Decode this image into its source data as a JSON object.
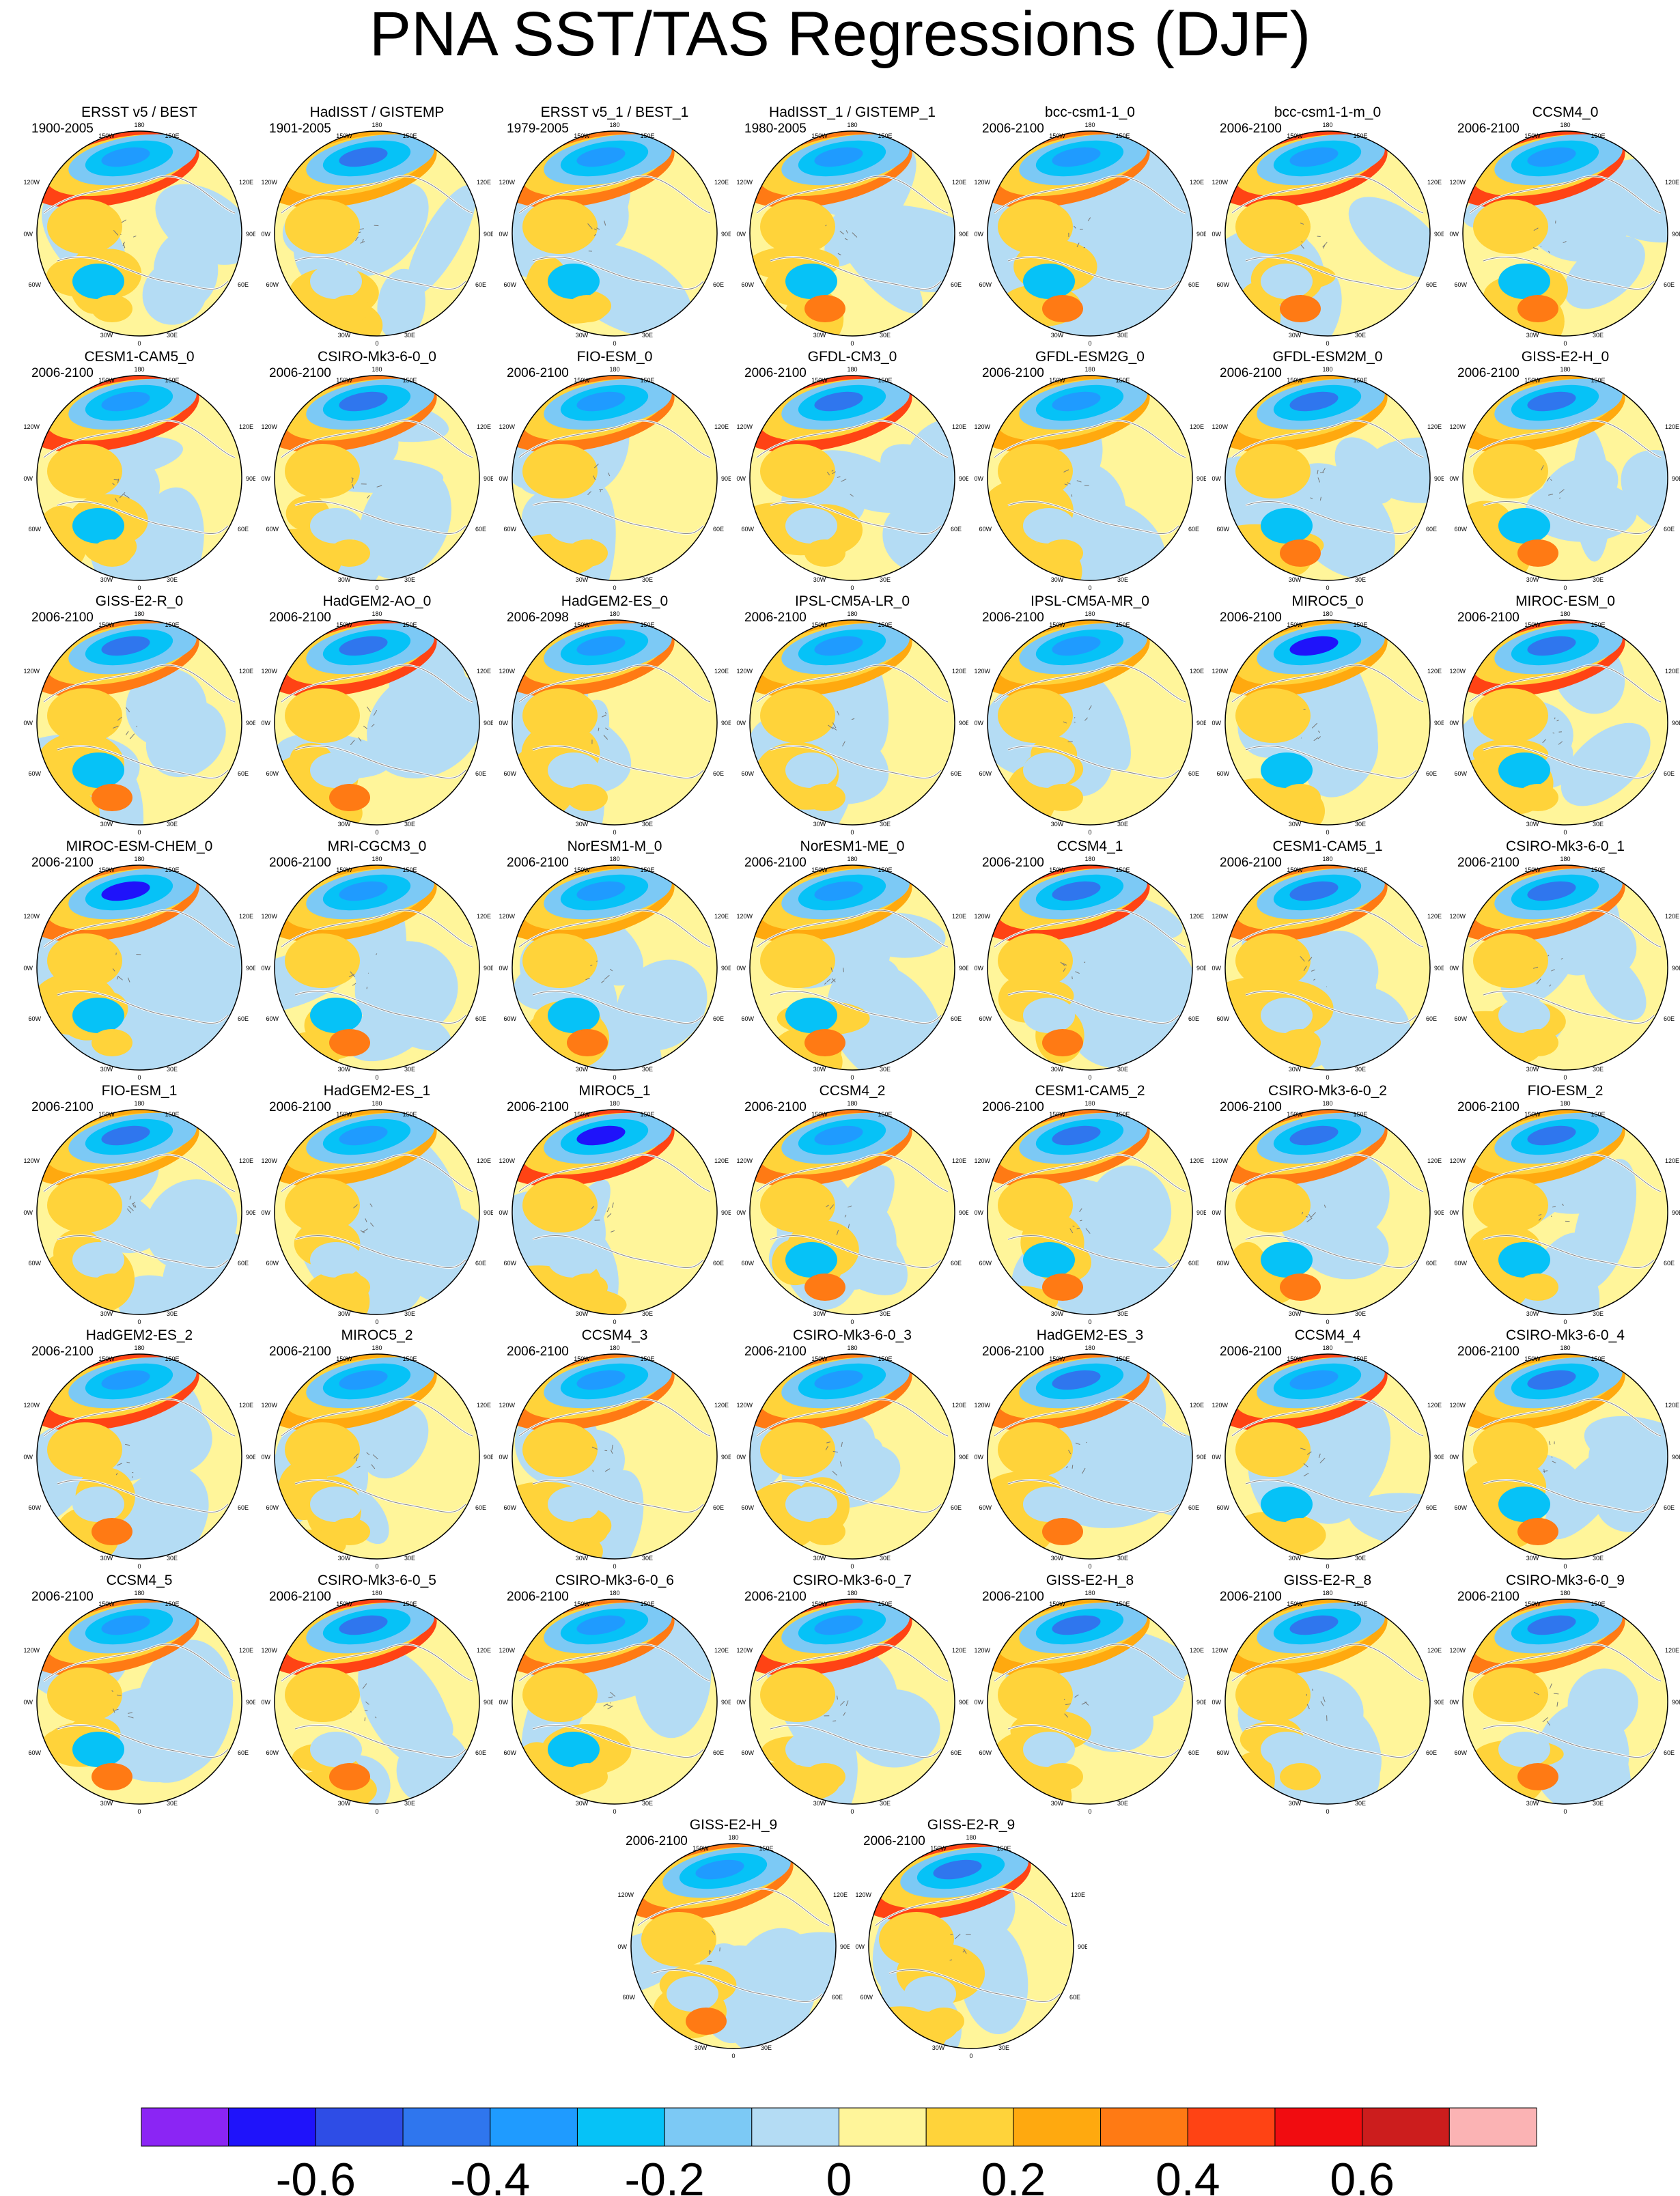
{
  "title": "PNA SST/TAS Regressions (DJF)",
  "lon_labels": [
    "180",
    "150W",
    "150E",
    "120W",
    "120E",
    "90W",
    "90E",
    "60W",
    "60E",
    "30W",
    "30E",
    "0"
  ],
  "colorbar": {
    "colors": [
      "#8b25f4",
      "#1f13fa",
      "#2e4de6",
      "#2f76ee",
      "#1f9bff",
      "#06c2f7",
      "#7cc9f5",
      "#b4dcf4",
      "#fff59a",
      "#ffd33a",
      "#ffa90f",
      "#ff7a14",
      "#ff4314",
      "#f10c10",
      "#cc1d1d",
      "#fbb3b4"
    ],
    "tick_labels": [
      "-0.6",
      "-0.4",
      "-0.2",
      "0",
      "0.2",
      "0.4",
      "0.6"
    ],
    "tick_boundary_index": [
      2,
      4,
      6,
      8,
      10,
      12,
      14
    ]
  },
  "panels": [
    {
      "name": "ERSST v5 / BEST",
      "period": "1900-2005"
    },
    {
      "name": "HadISST / GISTEMP",
      "period": "1901-2005"
    },
    {
      "name": "ERSST v5_1 / BEST_1",
      "period": "1979-2005"
    },
    {
      "name": "HadISST_1 / GISTEMP_1",
      "period": "1980-2005"
    },
    {
      "name": "bcc-csm1-1_0",
      "period": "2006-2100"
    },
    {
      "name": "bcc-csm1-1-m_0",
      "period": "2006-2100"
    },
    {
      "name": "CCSM4_0",
      "period": "2006-2100"
    },
    {
      "name": "CESM1-CAM5_0",
      "period": "2006-2100"
    },
    {
      "name": "CSIRO-Mk3-6-0_0",
      "period": "2006-2100"
    },
    {
      "name": "FIO-ESM_0",
      "period": "2006-2100"
    },
    {
      "name": "GFDL-CM3_0",
      "period": "2006-2100"
    },
    {
      "name": "GFDL-ESM2G_0",
      "period": "2006-2100"
    },
    {
      "name": "GFDL-ESM2M_0",
      "period": "2006-2100"
    },
    {
      "name": "GISS-E2-H_0",
      "period": "2006-2100"
    },
    {
      "name": "GISS-E2-R_0",
      "period": "2006-2100"
    },
    {
      "name": "HadGEM2-AO_0",
      "period": "2006-2100"
    },
    {
      "name": "HadGEM2-ES_0",
      "period": "2006-2098"
    },
    {
      "name": "IPSL-CM5A-LR_0",
      "period": "2006-2100"
    },
    {
      "name": "IPSL-CM5A-MR_0",
      "period": "2006-2100"
    },
    {
      "name": "MIROC5_0",
      "period": "2006-2100"
    },
    {
      "name": "MIROC-ESM_0",
      "period": "2006-2100"
    },
    {
      "name": "MIROC-ESM-CHEM_0",
      "period": "2006-2100"
    },
    {
      "name": "MRI-CGCM3_0",
      "period": "2006-2100"
    },
    {
      "name": "NorESM1-M_0",
      "period": "2006-2100"
    },
    {
      "name": "NorESM1-ME_0",
      "period": "2006-2100"
    },
    {
      "name": "CCSM4_1",
      "period": "2006-2100"
    },
    {
      "name": "CESM1-CAM5_1",
      "period": "2006-2100"
    },
    {
      "name": "CSIRO-Mk3-6-0_1",
      "period": "2006-2100"
    },
    {
      "name": "FIO-ESM_1",
      "period": "2006-2100"
    },
    {
      "name": "HadGEM2-ES_1",
      "period": "2006-2100"
    },
    {
      "name": "MIROC5_1",
      "period": "2006-2100"
    },
    {
      "name": "CCSM4_2",
      "period": "2006-2100"
    },
    {
      "name": "CESM1-CAM5_2",
      "period": "2006-2100"
    },
    {
      "name": "CSIRO-Mk3-6-0_2",
      "period": "2006-2100"
    },
    {
      "name": "FIO-ESM_2",
      "period": "2006-2100"
    },
    {
      "name": "HadGEM2-ES_2",
      "period": "2006-2100"
    },
    {
      "name": "MIROC5_2",
      "period": "2006-2100"
    },
    {
      "name": "CCSM4_3",
      "period": "2006-2100"
    },
    {
      "name": "CSIRO-Mk3-6-0_3",
      "period": "2006-2100"
    },
    {
      "name": "HadGEM2-ES_3",
      "period": "2006-2100"
    },
    {
      "name": "CCSM4_4",
      "period": "2006-2100"
    },
    {
      "name": "CSIRO-Mk3-6-0_4",
      "period": "2006-2100"
    },
    {
      "name": "CCSM4_5",
      "period": "2006-2100"
    },
    {
      "name": "CSIRO-Mk3-6-0_5",
      "period": "2006-2100"
    },
    {
      "name": "CSIRO-Mk3-6-0_6",
      "period": "2006-2100"
    },
    {
      "name": "CSIRO-Mk3-6-0_7",
      "period": "2006-2100"
    },
    {
      "name": "GISS-E2-H_8",
      "period": "2006-2100"
    },
    {
      "name": "GISS-E2-R_8",
      "period": "2006-2100"
    },
    {
      "name": "CSIRO-Mk3-6-0_9",
      "period": "2006-2100"
    },
    {
      "name": "GISS-E2-H_9",
      "period": "2006-2100"
    },
    {
      "name": "GISS-E2-R_9",
      "period": "2006-2100"
    }
  ]
}
